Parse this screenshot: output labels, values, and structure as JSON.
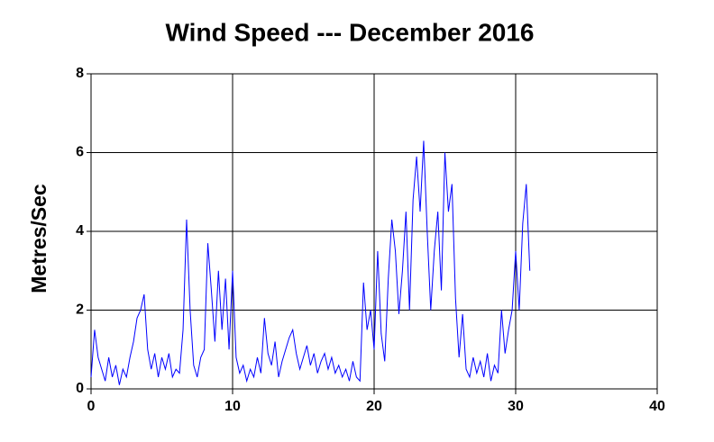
{
  "chart_data": {
    "type": "line",
    "title": "Wind Speed --- December 2016",
    "ylabel": "Metres/Sec",
    "x": [
      0,
      0.25,
      0.5,
      0.75,
      1,
      1.25,
      1.5,
      1.75,
      2,
      2.25,
      2.5,
      2.75,
      3,
      3.25,
      3.5,
      3.75,
      4,
      4.25,
      4.5,
      4.75,
      5,
      5.25,
      5.5,
      5.75,
      6,
      6.25,
      6.5,
      6.75,
      7,
      7.25,
      7.5,
      7.75,
      8,
      8.25,
      8.5,
      8.75,
      9,
      9.25,
      9.5,
      9.75,
      10,
      10.25,
      10.5,
      10.75,
      11,
      11.25,
      11.5,
      11.75,
      12,
      12.25,
      12.5,
      12.75,
      13,
      13.25,
      13.5,
      13.75,
      14,
      14.25,
      14.5,
      14.75,
      15,
      15.25,
      15.5,
      15.75,
      16,
      16.25,
      16.5,
      16.75,
      17,
      17.25,
      17.5,
      17.75,
      18,
      18.25,
      18.5,
      18.75,
      19,
      19.25,
      19.5,
      19.75,
      20,
      20.25,
      20.5,
      20.75,
      21,
      21.25,
      21.5,
      21.75,
      22,
      22.25,
      22.5,
      22.75,
      23,
      23.25,
      23.5,
      23.75,
      24,
      24.25,
      24.5,
      24.75,
      25,
      25.25,
      25.5,
      25.75,
      26,
      26.25,
      26.5,
      26.75,
      27,
      27.25,
      27.5,
      27.75,
      28,
      28.25,
      28.5,
      28.75,
      29,
      29.25,
      29.5,
      29.75,
      30,
      30.25,
      30.5,
      30.75,
      31
    ],
    "series": [
      {
        "name": "Wind Speed",
        "color": "#0000ff",
        "values": [
          0.3,
          1.5,
          0.8,
          0.5,
          0.2,
          0.8,
          0.3,
          0.6,
          0.1,
          0.5,
          0.3,
          0.8,
          1.2,
          1.8,
          2.0,
          2.4,
          1.0,
          0.5,
          0.9,
          0.3,
          0.8,
          0.5,
          0.9,
          0.3,
          0.5,
          0.4,
          1.5,
          4.3,
          2.0,
          0.6,
          0.3,
          0.8,
          1.0,
          3.7,
          2.5,
          1.2,
          3.0,
          1.5,
          2.8,
          1.0,
          3.0,
          0.8,
          0.4,
          0.6,
          0.2,
          0.5,
          0.3,
          0.8,
          0.4,
          1.8,
          0.9,
          0.6,
          1.2,
          0.3,
          0.7,
          1.0,
          1.3,
          1.5,
          0.9,
          0.5,
          0.8,
          1.1,
          0.6,
          0.9,
          0.4,
          0.7,
          0.9,
          0.5,
          0.8,
          0.4,
          0.6,
          0.3,
          0.5,
          0.2,
          0.7,
          0.3,
          0.2,
          2.7,
          1.5,
          2.0,
          1.0,
          3.5,
          1.4,
          0.7,
          2.8,
          4.3,
          3.5,
          1.9,
          3.0,
          4.5,
          2.0,
          4.8,
          5.9,
          4.5,
          6.3,
          4.0,
          2.0,
          3.5,
          4.5,
          2.5,
          6.0,
          4.5,
          5.2,
          2.3,
          0.8,
          1.9,
          0.5,
          0.3,
          0.8,
          0.4,
          0.7,
          0.3,
          0.9,
          0.2,
          0.6,
          0.4,
          2.0,
          0.9,
          1.5,
          2.0,
          3.5,
          2.0,
          4.2,
          5.2,
          3.0
        ]
      }
    ],
    "xlim": [
      0,
      40
    ],
    "xticks": [
      0,
      10,
      20,
      30,
      40
    ],
    "ylim": [
      0,
      8
    ],
    "yticks": [
      0,
      2,
      4,
      6,
      8
    ],
    "grid": true
  }
}
